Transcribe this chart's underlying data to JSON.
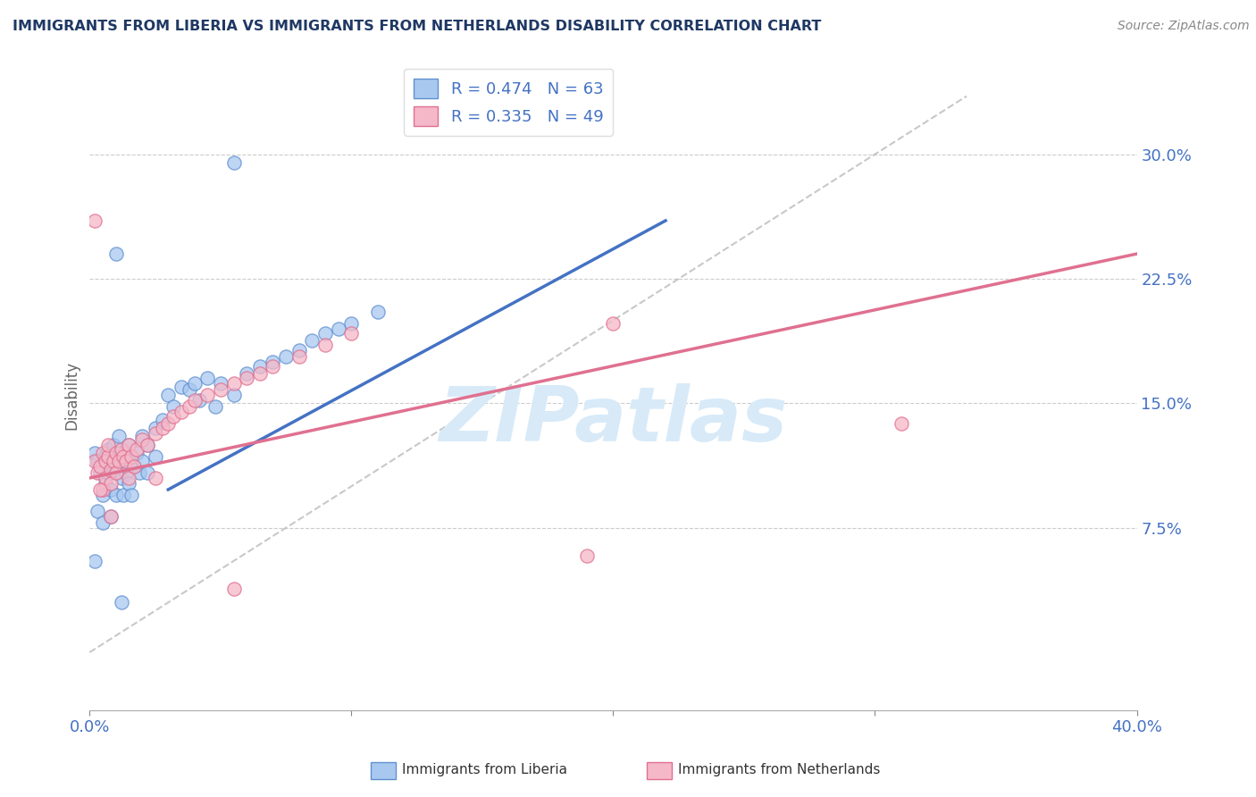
{
  "title": "IMMIGRANTS FROM LIBERIA VS IMMIGRANTS FROM NETHERLANDS DISABILITY CORRELATION CHART",
  "source": "Source: ZipAtlas.com",
  "ylabel": "Disability",
  "xlim": [
    0.0,
    0.4
  ],
  "ylim": [
    0.0,
    0.335
  ],
  "ytick_positions": [
    0.075,
    0.15,
    0.225,
    0.3
  ],
  "ytick_labels": [
    "7.5%",
    "15.0%",
    "22.5%",
    "30.0%"
  ],
  "legend_r1": "R = 0.474",
  "legend_n1": "N = 63",
  "legend_r2": "R = 0.335",
  "legend_n2": "N = 49",
  "blue_color": "#A8C8F0",
  "pink_color": "#F5B8C8",
  "blue_edge_color": "#6090D0",
  "pink_edge_color": "#E07090",
  "blue_line_color": "#4472C4",
  "pink_line_color": "#E07090",
  "ref_line_color": "#BBBBBB",
  "watermark": "ZIPatlas",
  "watermark_color": "#D8EAF8",
  "title_color": "#1F3864",
  "axis_label_color": "#4472C4",
  "grid_color": "#CCCCCC",
  "blue_trend_x": [
    0.03,
    0.22
  ],
  "blue_trend_y": [
    0.098,
    0.26
  ],
  "pink_trend_x": [
    0.0,
    0.4
  ],
  "pink_trend_y": [
    0.105,
    0.24
  ],
  "ref_line_x": [
    0.0,
    0.335
  ],
  "ref_line_y": [
    0.0,
    0.335
  ],
  "blue_scatter": [
    [
      0.002,
      0.12
    ],
    [
      0.003,
      0.115
    ],
    [
      0.004,
      0.108
    ],
    [
      0.005,
      0.112
    ],
    [
      0.005,
      0.095
    ],
    [
      0.006,
      0.118
    ],
    [
      0.006,
      0.102
    ],
    [
      0.007,
      0.108
    ],
    [
      0.007,
      0.122
    ],
    [
      0.008,
      0.115
    ],
    [
      0.008,
      0.098
    ],
    [
      0.009,
      0.11
    ],
    [
      0.009,
      0.125
    ],
    [
      0.01,
      0.108
    ],
    [
      0.01,
      0.095
    ],
    [
      0.011,
      0.112
    ],
    [
      0.011,
      0.13
    ],
    [
      0.012,
      0.118
    ],
    [
      0.012,
      0.105
    ],
    [
      0.013,
      0.12
    ],
    [
      0.013,
      0.095
    ],
    [
      0.014,
      0.115
    ],
    [
      0.014,
      0.108
    ],
    [
      0.015,
      0.125
    ],
    [
      0.015,
      0.102
    ],
    [
      0.016,
      0.118
    ],
    [
      0.016,
      0.095
    ],
    [
      0.017,
      0.112
    ],
    [
      0.018,
      0.12
    ],
    [
      0.019,
      0.108
    ],
    [
      0.02,
      0.115
    ],
    [
      0.02,
      0.13
    ],
    [
      0.022,
      0.125
    ],
    [
      0.022,
      0.108
    ],
    [
      0.025,
      0.135
    ],
    [
      0.025,
      0.118
    ],
    [
      0.028,
      0.14
    ],
    [
      0.03,
      0.155
    ],
    [
      0.032,
      0.148
    ],
    [
      0.035,
      0.16
    ],
    [
      0.038,
      0.158
    ],
    [
      0.04,
      0.162
    ],
    [
      0.042,
      0.152
    ],
    [
      0.045,
      0.165
    ],
    [
      0.048,
      0.148
    ],
    [
      0.05,
      0.162
    ],
    [
      0.055,
      0.155
    ],
    [
      0.06,
      0.168
    ],
    [
      0.065,
      0.172
    ],
    [
      0.07,
      0.175
    ],
    [
      0.075,
      0.178
    ],
    [
      0.08,
      0.182
    ],
    [
      0.085,
      0.188
    ],
    [
      0.09,
      0.192
    ],
    [
      0.095,
      0.195
    ],
    [
      0.1,
      0.198
    ],
    [
      0.11,
      0.205
    ],
    [
      0.003,
      0.085
    ],
    [
      0.005,
      0.078
    ],
    [
      0.008,
      0.082
    ],
    [
      0.012,
      0.03
    ],
    [
      0.055,
      0.295
    ],
    [
      0.01,
      0.24
    ],
    [
      0.002,
      0.055
    ]
  ],
  "pink_scatter": [
    [
      0.002,
      0.115
    ],
    [
      0.003,
      0.108
    ],
    [
      0.004,
      0.112
    ],
    [
      0.005,
      0.12
    ],
    [
      0.005,
      0.098
    ],
    [
      0.006,
      0.115
    ],
    [
      0.006,
      0.105
    ],
    [
      0.007,
      0.118
    ],
    [
      0.007,
      0.125
    ],
    [
      0.008,
      0.11
    ],
    [
      0.008,
      0.102
    ],
    [
      0.009,
      0.115
    ],
    [
      0.01,
      0.12
    ],
    [
      0.01,
      0.108
    ],
    [
      0.011,
      0.115
    ],
    [
      0.012,
      0.122
    ],
    [
      0.013,
      0.118
    ],
    [
      0.014,
      0.115
    ],
    [
      0.015,
      0.125
    ],
    [
      0.015,
      0.105
    ],
    [
      0.016,
      0.118
    ],
    [
      0.017,
      0.112
    ],
    [
      0.018,
      0.122
    ],
    [
      0.02,
      0.128
    ],
    [
      0.022,
      0.125
    ],
    [
      0.025,
      0.132
    ],
    [
      0.028,
      0.135
    ],
    [
      0.03,
      0.138
    ],
    [
      0.032,
      0.142
    ],
    [
      0.035,
      0.145
    ],
    [
      0.038,
      0.148
    ],
    [
      0.04,
      0.152
    ],
    [
      0.045,
      0.155
    ],
    [
      0.05,
      0.158
    ],
    [
      0.055,
      0.162
    ],
    [
      0.06,
      0.165
    ],
    [
      0.065,
      0.168
    ],
    [
      0.07,
      0.172
    ],
    [
      0.08,
      0.178
    ],
    [
      0.09,
      0.185
    ],
    [
      0.1,
      0.192
    ],
    [
      0.002,
      0.26
    ],
    [
      0.004,
      0.098
    ],
    [
      0.025,
      0.105
    ],
    [
      0.31,
      0.138
    ],
    [
      0.055,
      0.038
    ],
    [
      0.2,
      0.198
    ],
    [
      0.008,
      0.082
    ],
    [
      0.19,
      0.058
    ]
  ]
}
